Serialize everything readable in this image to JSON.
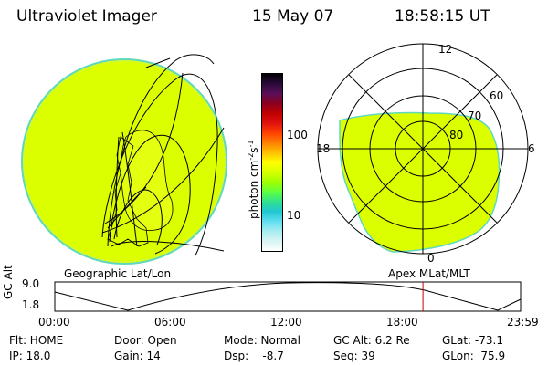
{
  "header": {
    "instrument": "Ultraviolet Imager",
    "date": "15 May 07",
    "time": "18:58:15 UT"
  },
  "panels": {
    "left_label": "Geographic Lat/Lon",
    "right_label": "Apex MLat/MLT"
  },
  "polar_labels": {
    "mlt_12": "12",
    "mlt_18": "18",
    "mlt_6": "6",
    "mlt_0": "0",
    "lat_60": "60",
    "lat_70": "70",
    "lat_80": "80"
  },
  "colorbar": {
    "label": "photon cm",
    "label_exp1": "-2",
    "label_s": "s",
    "label_exp2": "-1",
    "tick_high": "100",
    "tick_low": "10",
    "colors": [
      "#000000",
      "#2a0a3a",
      "#5a0f5a",
      "#8a0020",
      "#c00000",
      "#e01010",
      "#ff4000",
      "#ff8000",
      "#ffc000",
      "#ffff00",
      "#d8ff00",
      "#a0ff00",
      "#60ff40",
      "#30e090",
      "#20c8d0",
      "#60dff0",
      "#a8ecf0",
      "#d8f4f4",
      "#ffffff"
    ]
  },
  "timeline": {
    "ylabel": "GC Alt",
    "ymax": "9.0",
    "ymin": "1.8",
    "ticks": [
      "00:00",
      "06:00",
      "12:00",
      "18:00",
      "23:59"
    ],
    "current_time_fraction": 0.7904
  },
  "status": {
    "flt": "Flt: HOME",
    "ip": "IP: 18.0",
    "door": "Door: Open",
    "gain": "Gain: 14",
    "mode": "Mode: Normal",
    "dsp": "Dsp:    -8.7",
    "gcalt": "GC Alt: 6.2 Re",
    "seq": "Seq: 39",
    "glat": "GLat: -73.1",
    "glon": "GLon:  75.9"
  },
  "colors": {
    "aurora": "#dcff00",
    "edge": "#60d8c0",
    "marker": "#cc0000"
  }
}
